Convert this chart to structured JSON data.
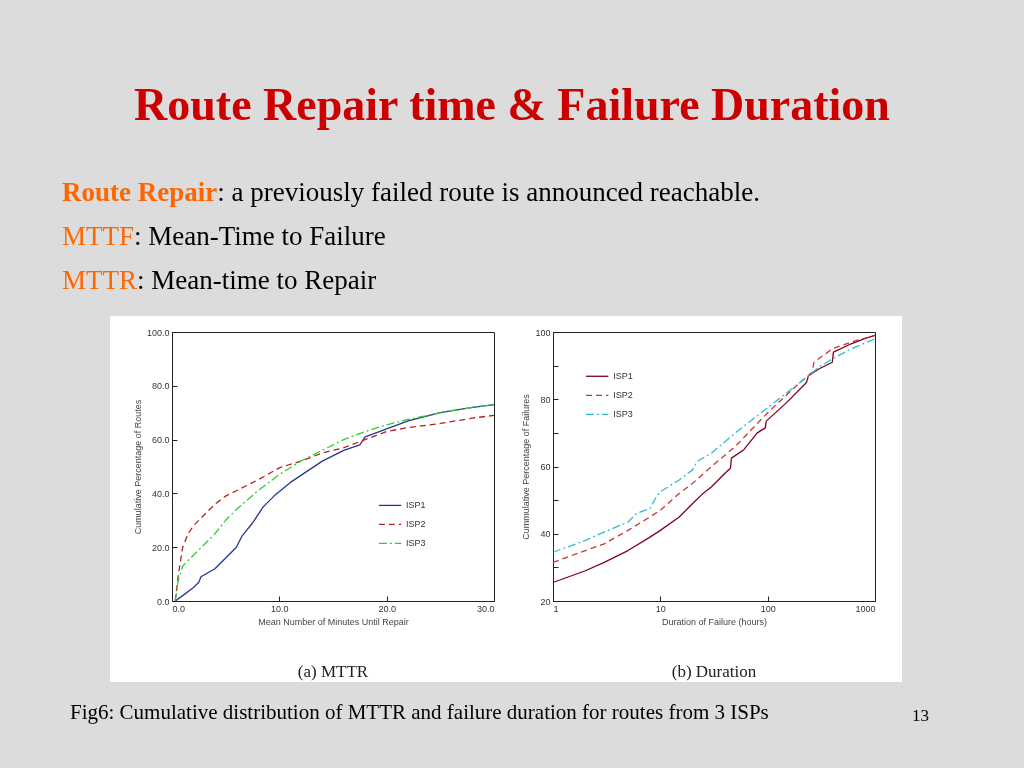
{
  "chart_data": [
    {
      "type": "line",
      "title": "(a) MTTR",
      "xlabel": "Mean Number of Minutes Until Repair",
      "ylabel": "Cumulative Percentage of Routes",
      "annotations": [
        "Route Repair time & Failure Duration",
        "Route Repair: a previously failed route is announced reachable.",
        "MTTF: Mean-Time to Failure",
        "MTTR: Mean-time to Repair"
      ],
      "xlim": [
        0,
        30
      ],
      "ylim": [
        0,
        100
      ],
      "xticks": [
        {
          "value": 0,
          "label": "0.0"
        },
        {
          "value": 10,
          "label": "10.0"
        },
        {
          "value": 20,
          "label": "20.0"
        },
        {
          "value": 30,
          "label": "30.0"
        }
      ],
      "yticks": [
        {
          "value": 0,
          "label": "0.0"
        },
        {
          "value": 20,
          "label": "20.0"
        },
        {
          "value": 40,
          "label": "40.0"
        },
        {
          "value": 60,
          "label": "60.0"
        },
        {
          "value": 80,
          "label": "80.0"
        },
        {
          "value": 100,
          "label": "100.0"
        }
      ],
      "grid": false,
      "legend": "right",
      "series": [
        {
          "name": "ISP1",
          "color": "#283593",
          "line_style": "solid",
          "x": [
            0.3,
            1,
            2,
            2.5,
            2.7,
            4,
            5,
            6,
            6.5,
            7.5,
            8.5,
            9.5,
            11,
            12.5,
            14,
            16,
            17.5,
            18,
            20,
            22,
            25,
            28,
            30
          ],
          "values": [
            0,
            2,
            5,
            7,
            9,
            12,
            16,
            20,
            24,
            29,
            35,
            39,
            44,
            48,
            52,
            56,
            58,
            61,
            64,
            67,
            70,
            72,
            73
          ]
        },
        {
          "name": "ISP2",
          "color": "#b22222",
          "line_style": "dashed",
          "x": [
            0.3,
            0.6,
            1,
            1.5,
            2,
            3,
            4,
            5,
            6,
            8,
            10,
            12,
            14,
            16,
            18,
            20,
            22,
            25,
            28,
            30
          ],
          "values": [
            0,
            10,
            20,
            25,
            28,
            32,
            36,
            39,
            41,
            45,
            49.5,
            52,
            55,
            57,
            60,
            63,
            64.5,
            66,
            68,
            69
          ]
        },
        {
          "name": "ISP3",
          "color": "#33cc33",
          "line_style": "dashdot",
          "x": [
            0.3,
            0.6,
            1,
            2,
            3,
            4,
            5,
            6,
            8,
            10,
            12,
            14,
            16,
            18,
            20,
            22,
            25,
            28,
            30
          ],
          "values": [
            0,
            8,
            13,
            17,
            21,
            25,
            30,
            34,
            41,
            47,
            52,
            56,
            60,
            63,
            65.5,
            67.5,
            70,
            72,
            73
          ]
        }
      ]
    },
    {
      "type": "line",
      "title": "(b) Duration",
      "xlabel": "Duration of Failure (hours)",
      "ylabel": "Cummulative Percentage of Failures",
      "annotations": [
        "Fig6: Cumulative distribution of MTTR and failure duration for routes from 3 ISPs",
        "13"
      ],
      "log": "x",
      "xlim": [
        1,
        1000
      ],
      "ylim": [
        20,
        100
      ],
      "xticks": [
        1,
        10,
        100,
        1000
      ],
      "yticks": [
        20,
        {
          "value": 30,
          "label": null
        },
        40,
        {
          "value": 50,
          "label": null
        },
        60,
        {
          "value": 70,
          "label": null
        },
        80,
        {
          "value": 90,
          "label": null
        },
        100
      ],
      "grid": false,
      "legend": "top left",
      "series": [
        {
          "name": "ISP1",
          "color": "#800020",
          "line_style": "solid",
          "x": [
            1,
            2,
            3,
            5,
            8,
            10,
            15,
            20,
            25,
            30,
            40,
            45,
            46,
            60,
            80,
            95,
            97,
            150,
            230,
            240,
            300,
            400,
            410,
            600,
            800,
            1000
          ],
          "values": [
            25.5,
            29,
            31.5,
            35,
            39,
            41,
            45,
            49,
            52,
            54,
            58,
            59.5,
            62.5,
            65,
            70,
            71.5,
            73.5,
            79,
            85,
            87,
            89,
            91,
            94,
            96.5,
            98,
            99
          ]
        },
        {
          "name": "ISP2",
          "color": "#cc3333",
          "line_style": "dashed",
          "x": [
            1,
            2,
            3,
            5,
            8,
            10,
            15,
            20,
            30,
            50,
            100,
            200,
            260,
            270,
            400,
            600,
            1000
          ],
          "values": [
            31.5,
            35,
            37,
            41,
            45,
            47,
            52,
            55,
            60,
            66,
            76,
            85,
            88,
            91,
            95,
            97,
            99
          ]
        },
        {
          "name": "ISP3",
          "color": "#33bbcc",
          "line_style": "dashdot",
          "x": [
            1,
            2,
            3,
            5,
            6,
            8,
            9,
            10,
            15,
            20,
            22,
            30,
            50,
            100,
            200,
            300,
            400,
            600,
            1000
          ],
          "values": [
            34.5,
            38,
            40.5,
            43.5,
            46,
            47.5,
            50.5,
            52.5,
            56,
            59,
            61.5,
            64,
            70,
            77.5,
            85,
            89.5,
            92,
            95,
            98
          ]
        }
      ]
    }
  ]
}
